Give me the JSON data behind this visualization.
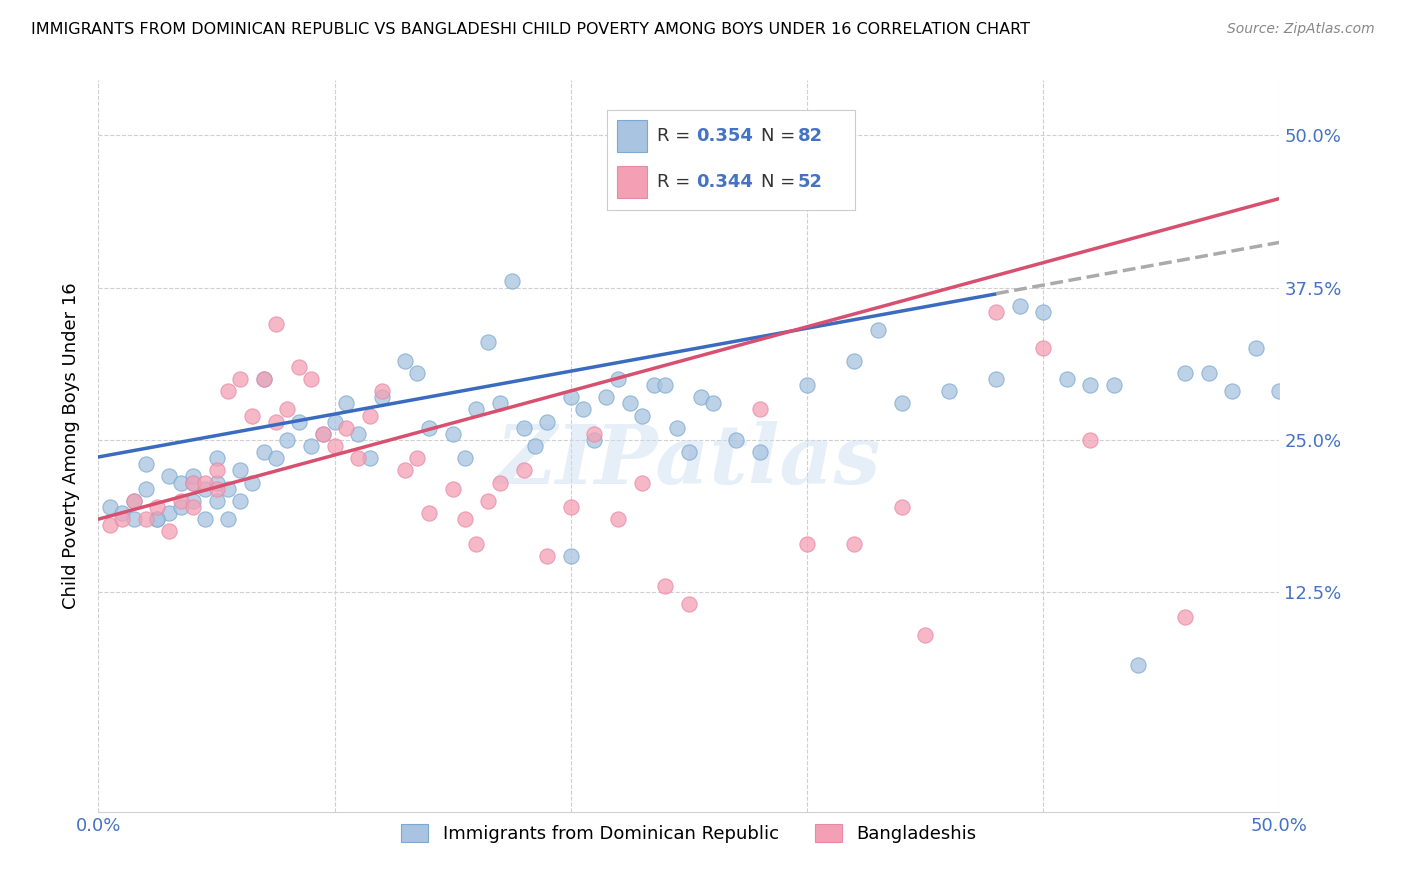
{
  "title": "IMMIGRANTS FROM DOMINICAN REPUBLIC VS BANGLADESHI CHILD POVERTY AMONG BOYS UNDER 16 CORRELATION CHART",
  "source": "Source: ZipAtlas.com",
  "ylabel": "Child Poverty Among Boys Under 16",
  "yticks": [
    "12.5%",
    "25.0%",
    "37.5%",
    "50.0%"
  ],
  "ytick_vals": [
    0.125,
    0.25,
    0.375,
    0.5
  ],
  "xlim": [
    0.0,
    0.5
  ],
  "ylim": [
    -0.055,
    0.545
  ],
  "legend_label_blue": "Immigrants from Dominican Republic",
  "legend_label_pink": "Bangladeshis",
  "blue_color": "#a8c4e0",
  "pink_color": "#f4a0b4",
  "blue_edge": "#7aa8d0",
  "pink_edge": "#e888a8",
  "trend_blue": "#3a6bbf",
  "trend_pink": "#d85070",
  "trend_gray": "#aaaaaa",
  "watermark": "ZIPatlas",
  "blue_x": [
    0.005,
    0.01,
    0.015,
    0.02,
    0.02,
    0.025,
    0.03,
    0.03,
    0.035,
    0.035,
    0.04,
    0.04,
    0.04,
    0.045,
    0.045,
    0.05,
    0.05,
    0.05,
    0.055,
    0.055,
    0.06,
    0.06,
    0.065,
    0.07,
    0.07,
    0.075,
    0.08,
    0.085,
    0.09,
    0.095,
    0.1,
    0.105,
    0.11,
    0.115,
    0.12,
    0.13,
    0.135,
    0.14,
    0.15,
    0.155,
    0.16,
    0.165,
    0.17,
    0.175,
    0.18,
    0.185,
    0.19,
    0.2,
    0.2,
    0.205,
    0.21,
    0.215,
    0.22,
    0.225,
    0.23,
    0.235,
    0.24,
    0.245,
    0.25,
    0.255,
    0.26,
    0.27,
    0.28,
    0.3,
    0.32,
    0.33,
    0.34,
    0.36,
    0.38,
    0.39,
    0.4,
    0.41,
    0.42,
    0.43,
    0.44,
    0.46,
    0.47,
    0.48,
    0.49,
    0.5,
    0.015,
    0.025
  ],
  "blue_y": [
    0.195,
    0.19,
    0.2,
    0.21,
    0.23,
    0.185,
    0.19,
    0.22,
    0.195,
    0.215,
    0.2,
    0.215,
    0.22,
    0.185,
    0.21,
    0.2,
    0.215,
    0.235,
    0.185,
    0.21,
    0.2,
    0.225,
    0.215,
    0.24,
    0.3,
    0.235,
    0.25,
    0.265,
    0.245,
    0.255,
    0.265,
    0.28,
    0.255,
    0.235,
    0.285,
    0.315,
    0.305,
    0.26,
    0.255,
    0.235,
    0.275,
    0.33,
    0.28,
    0.38,
    0.26,
    0.245,
    0.265,
    0.155,
    0.285,
    0.275,
    0.25,
    0.285,
    0.3,
    0.28,
    0.27,
    0.295,
    0.295,
    0.26,
    0.24,
    0.285,
    0.28,
    0.25,
    0.24,
    0.295,
    0.315,
    0.34,
    0.28,
    0.29,
    0.3,
    0.36,
    0.355,
    0.3,
    0.295,
    0.295,
    0.065,
    0.305,
    0.305,
    0.29,
    0.325,
    0.29,
    0.185,
    0.185
  ],
  "pink_x": [
    0.005,
    0.01,
    0.015,
    0.02,
    0.025,
    0.03,
    0.035,
    0.04,
    0.04,
    0.045,
    0.05,
    0.05,
    0.055,
    0.06,
    0.065,
    0.07,
    0.075,
    0.075,
    0.08,
    0.085,
    0.09,
    0.095,
    0.1,
    0.105,
    0.11,
    0.115,
    0.12,
    0.13,
    0.135,
    0.14,
    0.15,
    0.155,
    0.16,
    0.165,
    0.17,
    0.18,
    0.19,
    0.2,
    0.21,
    0.22,
    0.23,
    0.24,
    0.25,
    0.28,
    0.3,
    0.32,
    0.34,
    0.35,
    0.38,
    0.4,
    0.42,
    0.46
  ],
  "pink_y": [
    0.18,
    0.185,
    0.2,
    0.185,
    0.195,
    0.175,
    0.2,
    0.195,
    0.215,
    0.215,
    0.21,
    0.225,
    0.29,
    0.3,
    0.27,
    0.3,
    0.265,
    0.345,
    0.275,
    0.31,
    0.3,
    0.255,
    0.245,
    0.26,
    0.235,
    0.27,
    0.29,
    0.225,
    0.235,
    0.19,
    0.21,
    0.185,
    0.165,
    0.2,
    0.215,
    0.225,
    0.155,
    0.195,
    0.255,
    0.185,
    0.215,
    0.13,
    0.115,
    0.275,
    0.165,
    0.165,
    0.195,
    0.09,
    0.355,
    0.325,
    0.25,
    0.105
  ],
  "blue_trend_x": [
    0.0,
    0.5
  ],
  "blue_trend_y": [
    0.236,
    0.412
  ],
  "pink_trend_x": [
    0.0,
    0.5
  ],
  "pink_trend_y": [
    0.185,
    0.448
  ],
  "gray_trend_x": [
    0.38,
    0.5
  ],
  "gray_trend_y": [
    0.37,
    0.412
  ]
}
